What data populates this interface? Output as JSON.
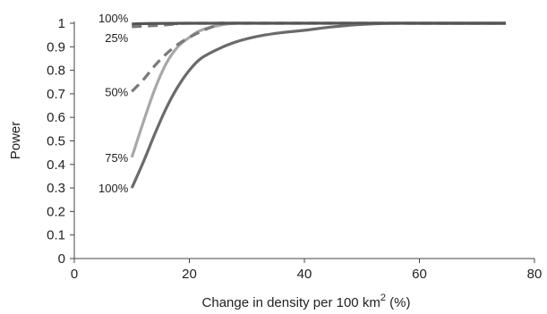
{
  "chart_data": {
    "type": "line",
    "xlabel": "Change in density per 100 km",
    "xlabel_sup": "2",
    "xlabel_suffix": " (%)",
    "ylabel": "Power",
    "xlim": [
      0,
      80
    ],
    "ylim": [
      0,
      1
    ],
    "xticks": [
      0,
      20,
      40,
      60,
      80
    ],
    "yticks": [
      0,
      0.1,
      0.2,
      0.3,
      0.4,
      0.5,
      0.6,
      0.7,
      0.8,
      0.9,
      1
    ],
    "xtick_labels": [
      "0",
      "20",
      "40",
      "60",
      "80"
    ],
    "ytick_labels": [
      "0",
      "0.1",
      "0.2",
      "0.3",
      "0.4",
      "0.5",
      "0.6",
      "0.7",
      "0.8",
      "0.9",
      "1"
    ],
    "grid": false,
    "legend": "none",
    "series": [
      {
        "name": "100%",
        "label_position": "bottom",
        "color": "#6b6b6b",
        "dash": false,
        "points": [
          [
            10,
            0.3
          ],
          [
            12,
            0.41
          ],
          [
            14,
            0.53
          ],
          [
            16,
            0.64
          ],
          [
            18,
            0.73
          ],
          [
            20,
            0.8
          ],
          [
            22,
            0.85
          ],
          [
            25,
            0.89
          ],
          [
            28,
            0.92
          ],
          [
            32,
            0.945
          ],
          [
            36,
            0.96
          ],
          [
            40,
            0.97
          ],
          [
            45,
            0.985
          ],
          [
            50,
            0.995
          ],
          [
            55,
            1.0
          ],
          [
            60,
            1.0
          ],
          [
            75,
            1.0
          ]
        ]
      },
      {
        "name": "75%",
        "label_position": "bottom",
        "color": "#a8a8a8",
        "dash": false,
        "points": [
          [
            10,
            0.43
          ],
          [
            12,
            0.58
          ],
          [
            14,
            0.72
          ],
          [
            16,
            0.83
          ],
          [
            18,
            0.9
          ],
          [
            20,
            0.94
          ],
          [
            22,
            0.97
          ],
          [
            25,
            0.99
          ],
          [
            28,
            1.0
          ],
          [
            35,
            1.0
          ],
          [
            75,
            1.0
          ]
        ]
      },
      {
        "name": "50%",
        "label_position": "bottom",
        "color": "#7a7a7a",
        "dash": true,
        "points": [
          [
            10,
            0.71
          ],
          [
            12,
            0.76
          ],
          [
            14,
            0.82
          ],
          [
            16,
            0.87
          ],
          [
            18,
            0.91
          ],
          [
            20,
            0.94
          ],
          [
            22,
            0.965
          ],
          [
            24,
            0.985
          ],
          [
            26,
            1.0
          ],
          [
            30,
            1.0
          ],
          [
            75,
            1.0
          ]
        ]
      },
      {
        "name": "25%",
        "label_position": "top",
        "color": "#7a7a7a",
        "dash": true,
        "points": [
          [
            10,
            0.985
          ],
          [
            14,
            0.99
          ],
          [
            18,
            0.997
          ],
          [
            22,
            1.0
          ],
          [
            75,
            1.0
          ]
        ]
      },
      {
        "name": "100%",
        "label_position": "top",
        "color": "#555555",
        "dash": false,
        "points": [
          [
            10,
            0.997
          ],
          [
            20,
            1.0
          ],
          [
            75,
            1.0
          ]
        ]
      }
    ]
  }
}
